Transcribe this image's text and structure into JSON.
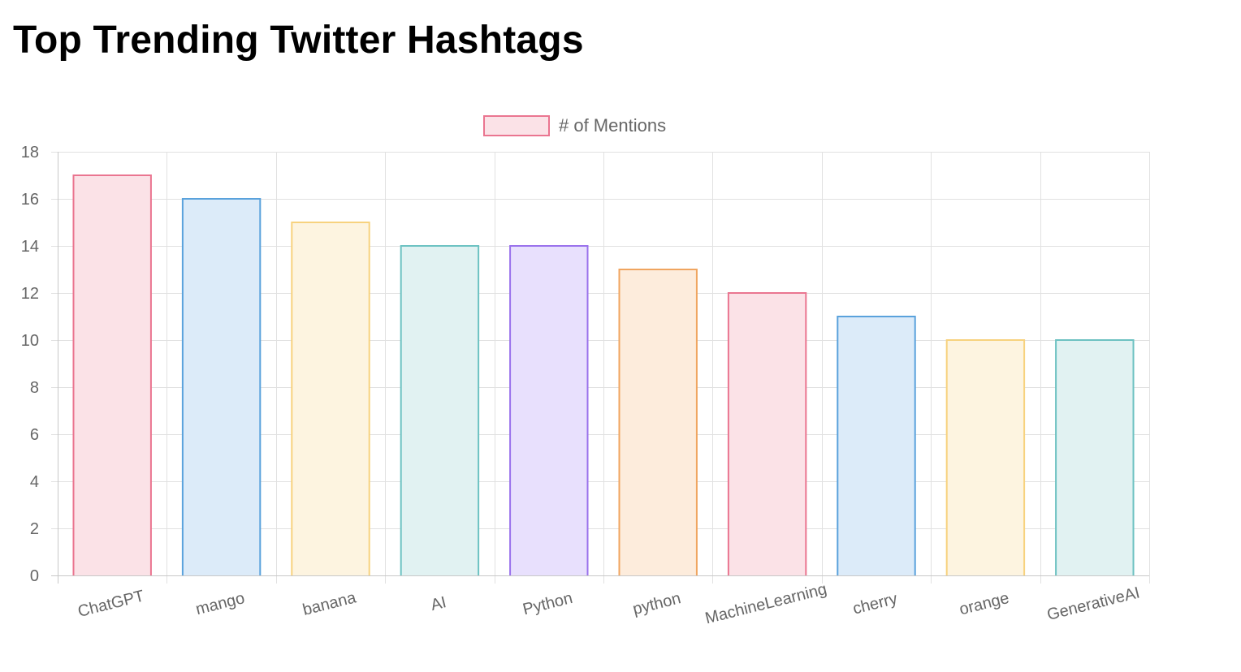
{
  "page": {
    "title": "Top Trending Twitter Hashtags"
  },
  "chart_data": {
    "type": "bar",
    "title": "",
    "xlabel": "",
    "ylabel": "",
    "categories": [
      "ChatGPT",
      "mango",
      "banana",
      "AI",
      "Python",
      "python",
      "MachineLearning",
      "cherry",
      "orange",
      "GenerativeAI"
    ],
    "series": [
      {
        "name": "# of Mentions",
        "values": [
          17,
          16,
          15,
          14,
          14,
          13,
          12,
          11,
          10,
          10
        ]
      }
    ],
    "bar_colors": [
      {
        "fill": "#fbe2e7",
        "stroke": "#ea7590"
      },
      {
        "fill": "#dcebf9",
        "stroke": "#5aa2dc"
      },
      {
        "fill": "#fdf4e0",
        "stroke": "#f7d27e"
      },
      {
        "fill": "#e1f2f2",
        "stroke": "#6dc2c2"
      },
      {
        "fill": "#e8e0fd",
        "stroke": "#9a72ec"
      },
      {
        "fill": "#fdecdc",
        "stroke": "#f0a560"
      },
      {
        "fill": "#fbe2e7",
        "stroke": "#ea7590"
      },
      {
        "fill": "#dcebf9",
        "stroke": "#5aa2dc"
      },
      {
        "fill": "#fdf4e0",
        "stroke": "#f7d27e"
      },
      {
        "fill": "#e1f2f2",
        "stroke": "#6dc2c2"
      }
    ],
    "ylim": [
      0,
      18
    ],
    "y_ticks": [
      0,
      2,
      4,
      6,
      8,
      10,
      12,
      14,
      16,
      18
    ],
    "grid": true,
    "legend_position": "top-center",
    "colors": {
      "grid": "#e1e1e1",
      "axis": "#c8c8c8",
      "tick_text": "#666666"
    }
  }
}
